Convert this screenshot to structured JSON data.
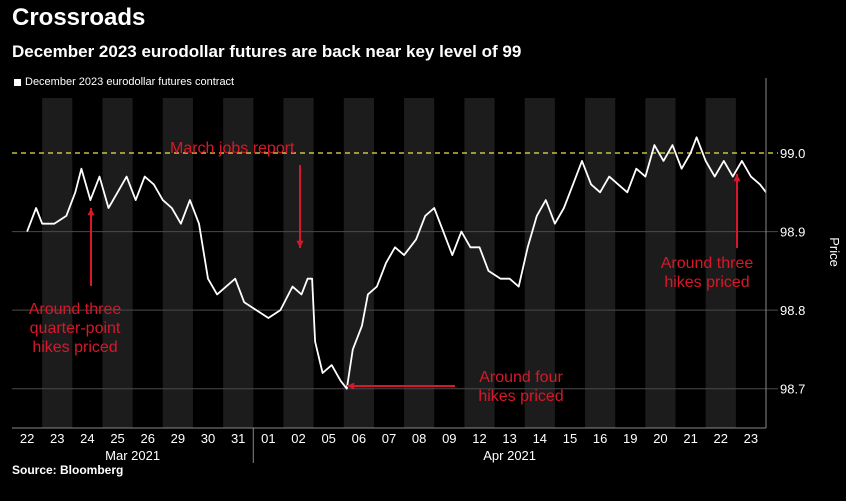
{
  "header": {
    "title": "Crossroads",
    "subtitle": "December 2023 eurodollar futures are back near key level of 99"
  },
  "legend": {
    "label": "December 2023 eurodollar futures contract"
  },
  "source": "Source: Bloomberg",
  "colors": {
    "background": "#000000",
    "line": "#ffffff",
    "shade": "#1c1c1c",
    "ref_line": "#e6e84a",
    "annotation": "#d8182a"
  },
  "chart_data": {
    "type": "line",
    "title": "Crossroads",
    "subtitle": "December 2023 eurodollar futures are back near key level of 99",
    "ylabel": "Price",
    "ylim": [
      98.65,
      99.07
    ],
    "yticks": [
      98.7,
      98.8,
      98.9,
      99.0
    ],
    "reference_line": 99.0,
    "day_labels": [
      "22",
      "23",
      "24",
      "25",
      "26",
      "29",
      "30",
      "31",
      "01",
      "02",
      "05",
      "06",
      "07",
      "08",
      "09",
      "12",
      "13",
      "14",
      "15",
      "16",
      "19",
      "20",
      "21",
      "22",
      "23"
    ],
    "months": [
      {
        "label": "Mar 2021",
        "first_day_index": 0,
        "last_day_index": 7
      },
      {
        "label": "Apr 2021",
        "first_day_index": 8,
        "last_day_index": 24
      }
    ],
    "series": [
      {
        "values": [
          [
            0,
            98.9
          ],
          [
            0.3,
            98.93
          ],
          [
            0.5,
            98.91
          ],
          [
            0.9,
            98.91
          ],
          [
            1.3,
            98.92
          ],
          [
            1.6,
            98.95
          ],
          [
            1.8,
            98.98
          ],
          [
            2.1,
            98.94
          ],
          [
            2.4,
            98.97
          ],
          [
            2.7,
            98.93
          ],
          [
            3.0,
            98.95
          ],
          [
            3.3,
            98.97
          ],
          [
            3.6,
            98.94
          ],
          [
            3.9,
            98.97
          ],
          [
            4.2,
            98.96
          ],
          [
            4.5,
            98.94
          ],
          [
            4.8,
            98.93
          ],
          [
            5.1,
            98.91
          ],
          [
            5.4,
            98.94
          ],
          [
            5.7,
            98.91
          ],
          [
            6.0,
            98.84
          ],
          [
            6.3,
            98.82
          ],
          [
            6.6,
            98.83
          ],
          [
            6.9,
            98.84
          ],
          [
            7.2,
            98.81
          ],
          [
            7.6,
            98.8
          ],
          [
            8.0,
            98.79
          ],
          [
            8.4,
            98.8
          ],
          [
            8.8,
            98.83
          ],
          [
            9.1,
            98.82
          ],
          [
            9.3,
            98.84
          ],
          [
            9.45,
            98.84
          ],
          [
            9.55,
            98.76
          ],
          [
            9.8,
            98.72
          ],
          [
            10.1,
            98.73
          ],
          [
            10.4,
            98.71
          ],
          [
            10.6,
            98.7
          ],
          [
            10.8,
            98.75
          ],
          [
            11.1,
            98.78
          ],
          [
            11.3,
            98.82
          ],
          [
            11.6,
            98.83
          ],
          [
            11.9,
            98.86
          ],
          [
            12.2,
            98.88
          ],
          [
            12.5,
            98.87
          ],
          [
            12.9,
            98.89
          ],
          [
            13.2,
            98.92
          ],
          [
            13.5,
            98.93
          ],
          [
            13.8,
            98.9
          ],
          [
            14.1,
            98.87
          ],
          [
            14.4,
            98.9
          ],
          [
            14.7,
            98.88
          ],
          [
            15.0,
            98.88
          ],
          [
            15.3,
            98.85
          ],
          [
            15.7,
            98.84
          ],
          [
            16.0,
            98.84
          ],
          [
            16.3,
            98.83
          ],
          [
            16.6,
            98.88
          ],
          [
            16.9,
            98.92
          ],
          [
            17.2,
            98.94
          ],
          [
            17.5,
            98.91
          ],
          [
            17.8,
            98.93
          ],
          [
            18.1,
            98.96
          ],
          [
            18.4,
            98.99
          ],
          [
            18.7,
            98.96
          ],
          [
            19.0,
            98.95
          ],
          [
            19.3,
            98.97
          ],
          [
            19.6,
            98.96
          ],
          [
            19.9,
            98.95
          ],
          [
            20.2,
            98.98
          ],
          [
            20.5,
            98.97
          ],
          [
            20.8,
            99.01
          ],
          [
            21.1,
            98.99
          ],
          [
            21.4,
            99.01
          ],
          [
            21.7,
            98.98
          ],
          [
            22.0,
            99.0
          ],
          [
            22.2,
            99.02
          ],
          [
            22.5,
            98.99
          ],
          [
            22.8,
            98.97
          ],
          [
            23.1,
            98.99
          ],
          [
            23.4,
            98.97
          ],
          [
            23.7,
            98.99
          ],
          [
            24.0,
            98.97
          ],
          [
            24.3,
            98.96
          ],
          [
            24.5,
            98.95
          ]
        ]
      }
    ],
    "annotations": [
      {
        "text": "March jobs report"
      },
      {
        "text": "Around three\nquarter-point\nhikes priced"
      },
      {
        "text": "Around four\nhikes priced"
      },
      {
        "text": "Around three\nhikes priced"
      }
    ]
  }
}
